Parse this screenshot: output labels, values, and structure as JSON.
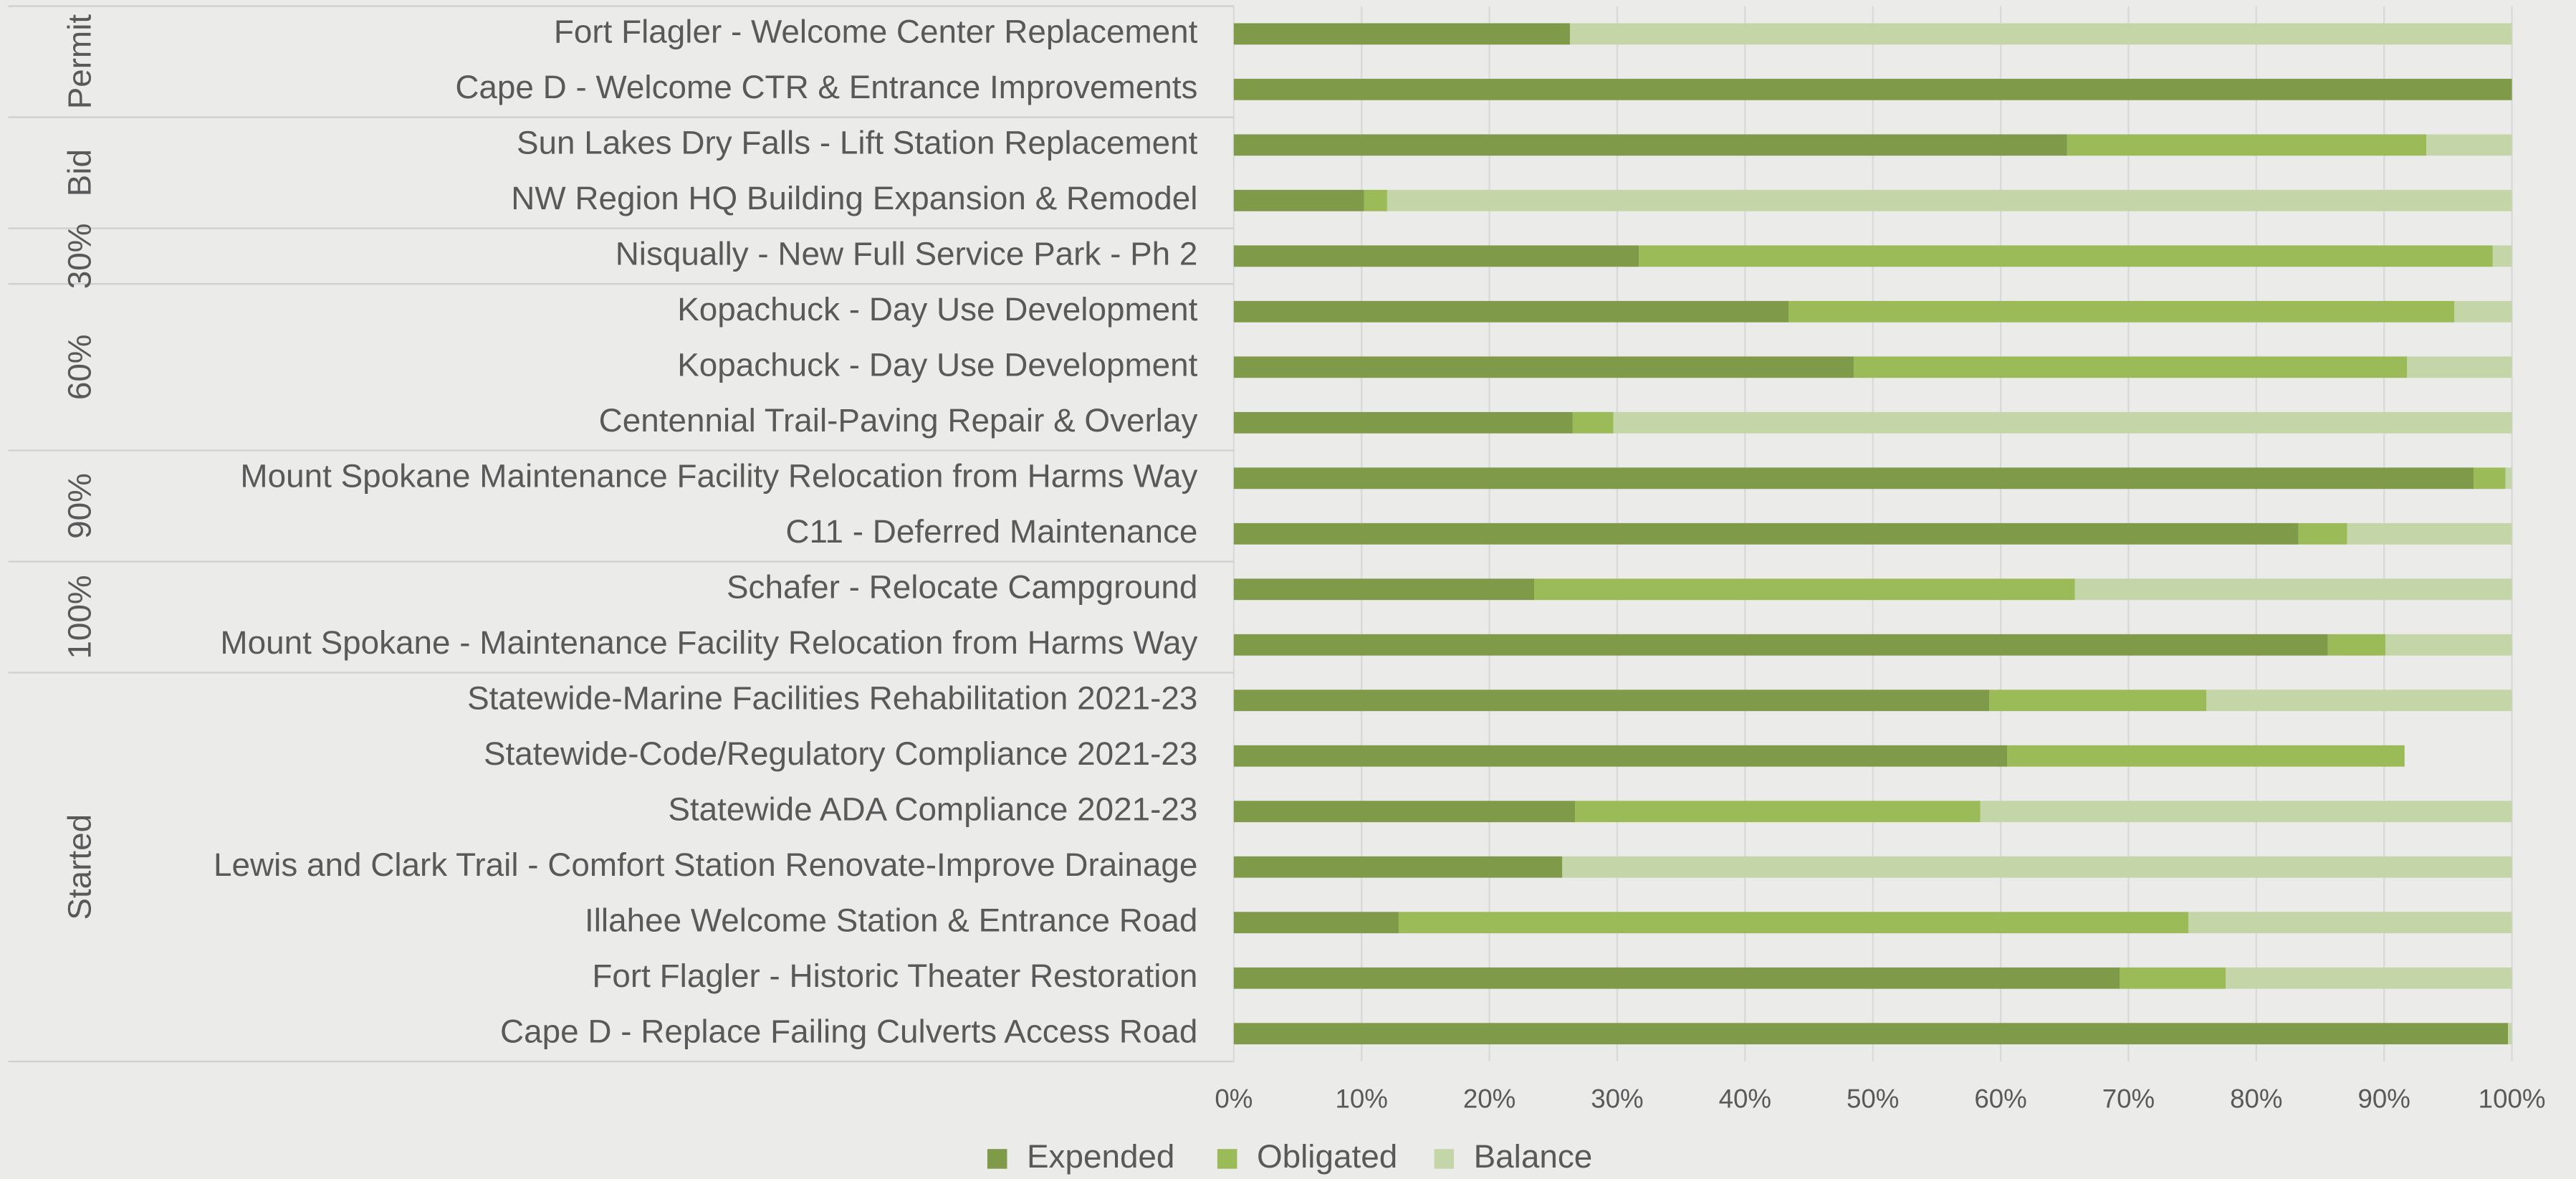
{
  "chart_data": {
    "type": "stacked_barh",
    "categories": [
      "Fort Flagler - Welcome Center Replacement",
      "Cape D - Welcome CTR & Entrance Improvements",
      "Sun Lakes Dry Falls - Lift Station Replacement",
      "NW Region HQ Building Expansion & Remodel",
      "Nisqually - New Full Service Park - Ph 2",
      "Kopachuck - Day Use Development ",
      "Kopachuck - Day Use Development",
      "Centennial Trail-Paving Repair & Overlay",
      "Mount Spokane Maintenance Facility Relocation from Harms Way",
      "C11 - Deferred Maintenance",
      "Schafer - Relocate Campground",
      "Mount Spokane - Maintenance Facility Relocation from Harms Way",
      "Statewide-Marine Facilities Rehabilitation 2021-23",
      "Statewide-Code/Regulatory Compliance 2021-23",
      "Statewide ADA Compliance 2021-23",
      "Lewis and Clark Trail - Comfort Station Renovate-Improve Drainage ",
      "Illahee Welcome Station & Entrance Road",
      "Fort Flagler - Historic Theater Restoration",
      "Cape D - Replace Failing Culverts Access Road"
    ],
    "groups": [
      {
        "label": "Permit",
        "size": 2
      },
      {
        "label": "Bid",
        "size": 2
      },
      {
        "label": "30%",
        "size": 1
      },
      {
        "label": "60%",
        "size": 3
      },
      {
        "label": "90%",
        "size": 2
      },
      {
        "label": "100%",
        "size": 2
      },
      {
        "label": "Started",
        "size": 7
      }
    ],
    "series": [
      {
        "name": "Expended",
        "color": "#7f9a48",
        "values": [
          26.3,
          100,
          65.2,
          10.2,
          31.7,
          43.4,
          48.5,
          26.5,
          97,
          83.3,
          23.5,
          85.6,
          59.1,
          60.5,
          26.7,
          25.7,
          12.9,
          69.3,
          99.7
        ]
      },
      {
        "name": "Obligated",
        "color": "#9bbb59",
        "values": [
          0,
          0,
          28.1,
          1.8,
          66.8,
          52.1,
          43.3,
          3.2,
          2.5,
          3.8,
          42.3,
          4.5,
          17,
          31.1,
          31.7,
          0,
          61.8,
          8.3,
          0
        ]
      },
      {
        "name": "Balance",
        "color": "#c4d6a8",
        "values": [
          73.7,
          0,
          6.7,
          88,
          1.5,
          4.5,
          8.2,
          70.3,
          0.5,
          12.9,
          34.2,
          9.9,
          23.9,
          0,
          41.6,
          74.3,
          25.3,
          22.4,
          0.3
        ]
      }
    ],
    "xlim": [
      0,
      100
    ],
    "xticks": [
      {
        "value": 0,
        "label": "0%"
      },
      {
        "value": 10,
        "label": "10%"
      },
      {
        "value": 20,
        "label": "20%"
      },
      {
        "value": 30,
        "label": "30%"
      },
      {
        "value": 40,
        "label": "40%"
      },
      {
        "value": 50,
        "label": "50%"
      },
      {
        "value": 60,
        "label": "60%"
      },
      {
        "value": 70,
        "label": "70%"
      },
      {
        "value": 80,
        "label": "80%"
      },
      {
        "value": 90,
        "label": "90%"
      },
      {
        "value": 100,
        "label": "100%"
      }
    ],
    "grid": true,
    "legend": "bottom"
  }
}
